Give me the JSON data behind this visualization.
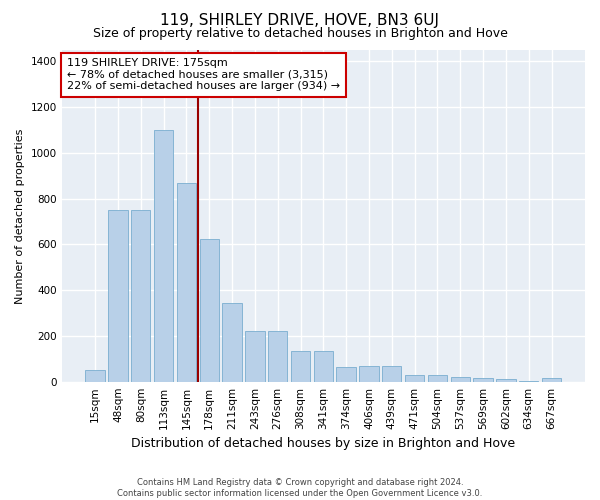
{
  "title": "119, SHIRLEY DRIVE, HOVE, BN3 6UJ",
  "subtitle": "Size of property relative to detached houses in Brighton and Hove",
  "xlabel": "Distribution of detached houses by size in Brighton and Hove",
  "ylabel": "Number of detached properties",
  "footer_line1": "Contains HM Land Registry data © Crown copyright and database right 2024.",
  "footer_line2": "Contains public sector information licensed under the Open Government Licence v3.0.",
  "bar_labels": [
    "15sqm",
    "48sqm",
    "80sqm",
    "113sqm",
    "145sqm",
    "178sqm",
    "211sqm",
    "243sqm",
    "276sqm",
    "308sqm",
    "341sqm",
    "374sqm",
    "406sqm",
    "439sqm",
    "471sqm",
    "504sqm",
    "537sqm",
    "569sqm",
    "602sqm",
    "634sqm",
    "667sqm"
  ],
  "bar_values": [
    50,
    750,
    750,
    1100,
    870,
    625,
    345,
    220,
    220,
    135,
    135,
    65,
    70,
    70,
    30,
    30,
    20,
    15,
    10,
    5,
    15
  ],
  "bar_color": "#b8d0e8",
  "bar_edge_color": "#7aaed0",
  "property_line_color": "#990000",
  "annotation_text": "119 SHIRLEY DRIVE: 175sqm\n← 78% of detached houses are smaller (3,315)\n22% of semi-detached houses are larger (934) →",
  "annotation_box_color": "#ffffff",
  "annotation_box_edge_color": "#cc0000",
  "ylim": [
    0,
    1450
  ],
  "background_color": "#e8eef5",
  "grid_color": "#ffffff",
  "title_fontsize": 11,
  "subtitle_fontsize": 9,
  "ylabel_fontsize": 8,
  "xlabel_fontsize": 9,
  "tick_fontsize": 7.5,
  "annotation_fontsize": 8
}
